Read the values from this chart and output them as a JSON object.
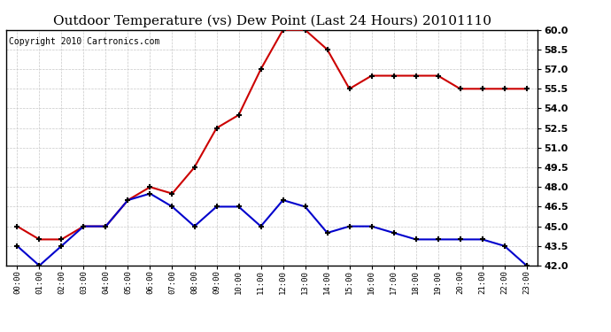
{
  "title": "Outdoor Temperature (vs) Dew Point (Last 24 Hours) 20101110",
  "copyright": "Copyright 2010 Cartronics.com",
  "hours": [
    "00:00",
    "01:00",
    "02:00",
    "03:00",
    "04:00",
    "05:00",
    "06:00",
    "07:00",
    "08:00",
    "09:00",
    "10:00",
    "11:00",
    "12:00",
    "13:00",
    "14:00",
    "15:00",
    "16:00",
    "17:00",
    "18:00",
    "19:00",
    "20:00",
    "21:00",
    "22:00",
    "23:00"
  ],
  "temp": [
    45.0,
    44.0,
    44.0,
    45.0,
    45.0,
    47.0,
    48.0,
    47.5,
    49.5,
    52.5,
    53.5,
    57.0,
    60.0,
    60.0,
    58.5,
    55.5,
    56.5,
    56.5,
    56.5,
    56.5,
    55.5,
    55.5,
    55.5,
    55.5
  ],
  "dew": [
    43.5,
    42.0,
    43.5,
    45.0,
    45.0,
    47.0,
    47.5,
    46.5,
    45.0,
    46.5,
    46.5,
    45.0,
    47.0,
    46.5,
    44.5,
    45.0,
    45.0,
    44.5,
    44.0,
    44.0,
    44.0,
    44.0,
    43.5,
    42.0
  ],
  "temp_color": "#cc0000",
  "dew_color": "#0000cc",
  "ylim": [
    42.0,
    60.0
  ],
  "yticks": [
    42.0,
    43.5,
    45.0,
    46.5,
    48.0,
    49.5,
    51.0,
    52.5,
    54.0,
    55.5,
    57.0,
    58.5,
    60.0
  ],
  "bg_color": "#ffffff",
  "grid_color": "#c8c8c8",
  "title_fontsize": 11,
  "copyright_fontsize": 7
}
